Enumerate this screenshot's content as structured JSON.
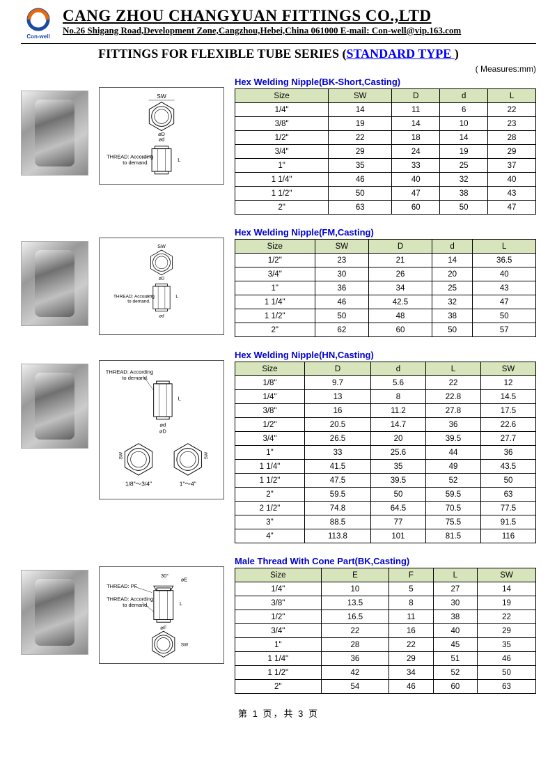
{
  "company_name": "CANG ZHOU CHANGYUAN FITTINGS CO.,LTD",
  "address": "No.26 Shigang Road,Development Zone,Cangzhou,Hebei,China  061000   E-mail: Con-well@vip.163.com",
  "logo_label": "Con-well",
  "series_prefix": "FITTINGS FOR FLEXIBLE TUBE SERIES   (",
  "series_link": "STANDARD TYPE ",
  "series_suffix": ")",
  "measures": "( Measures:mm)",
  "diagram_note": "THREAD: According to demand.",
  "diagram_range1": "1/8\"～3/4\"",
  "diagram_range2": "1\"～4\"",
  "tables": [
    {
      "title": "Hex Welding Nipple(BK-Short,Casting)",
      "columns": [
        "Size",
        "SW",
        "D",
        "d",
        "L"
      ],
      "rows": [
        [
          "1/4\"",
          "14",
          "11",
          "6",
          "22"
        ],
        [
          "3/8\"",
          "19",
          "14",
          "10",
          "23"
        ],
        [
          "1/2\"",
          "22",
          "18",
          "14",
          "28"
        ],
        [
          "3/4\"",
          "29",
          "24",
          "19",
          "29"
        ],
        [
          "1\"",
          "35",
          "33",
          "25",
          "37"
        ],
        [
          "1 1/4\"",
          "46",
          "40",
          "32",
          "40"
        ],
        [
          "1 1/2\"",
          "50",
          "47",
          "38",
          "43"
        ],
        [
          "2\"",
          "63",
          "60",
          "50",
          "47"
        ]
      ]
    },
    {
      "title": "Hex Welding Nipple(FM,Casting)",
      "columns": [
        "Size",
        "SW",
        "D",
        "d",
        "L"
      ],
      "rows": [
        [
          "1/2\"",
          "23",
          "21",
          "14",
          "36.5"
        ],
        [
          "3/4\"",
          "30",
          "26",
          "20",
          "40"
        ],
        [
          "1\"",
          "36",
          "34",
          "25",
          "43"
        ],
        [
          "1 1/4\"",
          "46",
          "42.5",
          "32",
          "47"
        ],
        [
          "1 1/2\"",
          "50",
          "48",
          "38",
          "50"
        ],
        [
          "2\"",
          "62",
          "60",
          "50",
          "57"
        ]
      ]
    },
    {
      "title": "Hex Welding Nipple(HN,Casting)",
      "columns": [
        "Size",
        "D",
        "d",
        "L",
        "SW"
      ],
      "rows": [
        [
          "1/8\"",
          "9.7",
          "5.6",
          "22",
          "12"
        ],
        [
          "1/4\"",
          "13",
          "8",
          "22.8",
          "14.5"
        ],
        [
          "3/8\"",
          "16",
          "11.2",
          "27.8",
          "17.5"
        ],
        [
          "1/2\"",
          "20.5",
          "14.7",
          "36",
          "22.6"
        ],
        [
          "3/4\"",
          "26.5",
          "20",
          "39.5",
          "27.7"
        ],
        [
          "1\"",
          "33",
          "25.6",
          "44",
          "36"
        ],
        [
          "1 1/4\"",
          "41.5",
          "35",
          "49",
          "43.5"
        ],
        [
          "1 1/2\"",
          "47.5",
          "39.5",
          "52",
          "50"
        ],
        [
          "2\"",
          "59.5",
          "50",
          "59.5",
          "63"
        ],
        [
          "2 1/2\"",
          "74.8",
          "64.5",
          "70.5",
          "77.5"
        ],
        [
          "3\"",
          "88.5",
          "77",
          "75.5",
          "91.5"
        ],
        [
          "4\"",
          "113.8",
          "101",
          "81.5",
          "116"
        ]
      ]
    },
    {
      "title": "Male Thread With Cone Part(BK,Casting)",
      "columns": [
        "Size",
        "E",
        "F",
        "L",
        "SW"
      ],
      "rows": [
        [
          "1/4\"",
          "10",
          "5",
          "27",
          "14"
        ],
        [
          "3/8\"",
          "13.5",
          "8",
          "30",
          "19"
        ],
        [
          "1/2\"",
          "16.5",
          "11",
          "38",
          "22"
        ],
        [
          "3/4\"",
          "22",
          "16",
          "40",
          "29"
        ],
        [
          "1\"",
          "28",
          "22",
          "45",
          "35"
        ],
        [
          "1 1/4\"",
          "36",
          "29",
          "51",
          "46"
        ],
        [
          "1 1/2\"",
          "42",
          "34",
          "52",
          "50"
        ],
        [
          "2\"",
          "54",
          "46",
          "60",
          "63"
        ]
      ]
    }
  ],
  "footer": "第  1  页，共  3  页",
  "colors": {
    "title_blue": "#0000cc",
    "link_blue": "#0000ff",
    "header_bg": "#d8e4bc",
    "logo_orange": "#e8680b",
    "logo_blue": "#1a4ba0"
  }
}
